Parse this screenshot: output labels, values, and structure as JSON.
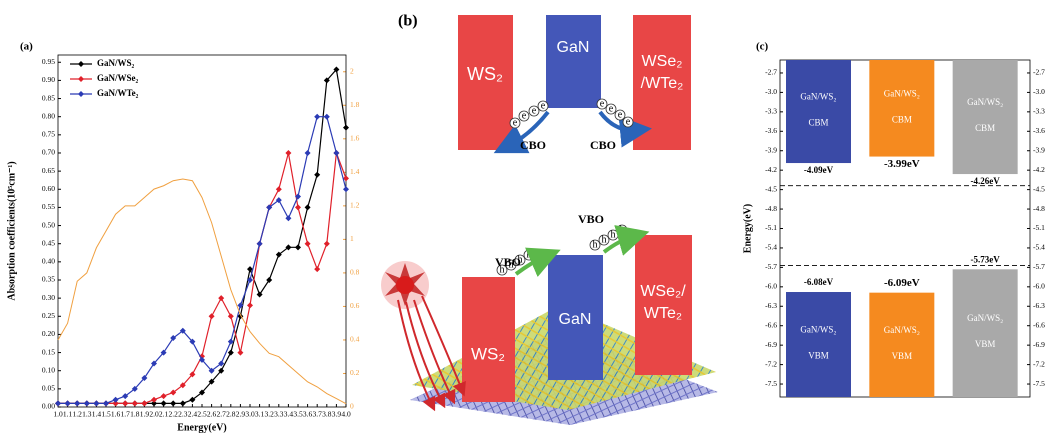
{
  "chart_data": [
    {
      "type": "line",
      "label": "(a)",
      "xlabel": "Energy(eV)",
      "ylabel": "Absorption coefficients(10⁵cm⁻¹)",
      "x": [
        1.0,
        1.1,
        1.2,
        1.3,
        1.4,
        1.5,
        1.6,
        1.7,
        1.8,
        1.9,
        2.0,
        2.1,
        2.2,
        2.3,
        2.4,
        2.5,
        2.6,
        2.7,
        2.8,
        2.9,
        3.0,
        3.1,
        3.2,
        3.3,
        3.4,
        3.5,
        3.6,
        3.7,
        3.8,
        3.9,
        4.0
      ],
      "xlim": [
        1.0,
        4.0
      ],
      "xticks": [
        {
          "value": 1,
          "label": "1.0"
        },
        1.1,
        1.2,
        1.3,
        1.4,
        1.5,
        1.6,
        1.7,
        1.8,
        1.9,
        {
          "value": 2,
          "label": "2.0"
        },
        2.1,
        2.2,
        2.3,
        2.4,
        2.5,
        2.6,
        2.7,
        2.8,
        2.9,
        {
          "value": 3,
          "label": "3.0"
        },
        3.1,
        3.2,
        3.3,
        3.4,
        3.5,
        3.6,
        3.7,
        3.8,
        3.9,
        {
          "value": 4,
          "label": "4.0"
        }
      ],
      "ylim": [
        0,
        0.97
      ],
      "yticks": [
        {
          "value": 0,
          "label": "0.00"
        },
        0.05,
        {
          "value": 0.1,
          "label": "0.10"
        },
        0.15,
        {
          "value": 0.2,
          "label": "0.20"
        },
        0.25,
        {
          "value": 0.3,
          "label": "0.30"
        },
        0.35,
        {
          "value": 0.4,
          "label": "0.40"
        },
        0.45,
        {
          "value": 0.5,
          "label": "0.50"
        },
        0.55,
        {
          "value": 0.6,
          "label": "0.60"
        },
        0.65,
        {
          "value": 0.7,
          "label": "0.70"
        },
        0.75,
        {
          "value": 0.8,
          "label": "0.80"
        },
        0.85,
        {
          "value": 0.9,
          "label": "0.90"
        },
        0.95
      ],
      "y2lim": [
        0,
        2.1
      ],
      "y2ticks": [
        0,
        0.2,
        0.4,
        0.6,
        0.8,
        1,
        1.2,
        1.4,
        1.6,
        1.8,
        2
      ],
      "y2color": "#f0a040",
      "legend": "upper left",
      "series": [
        {
          "name": "GaN/WS₂",
          "color": "#000000",
          "marker": "diamond",
          "values": [
            0.01,
            0.01,
            0.01,
            0.01,
            0.01,
            0.01,
            0.01,
            0.01,
            0.01,
            0.01,
            0.01,
            0.01,
            0.01,
            0.01,
            0.02,
            0.04,
            0.07,
            0.1,
            0.15,
            0.25,
            0.38,
            0.31,
            0.35,
            0.42,
            0.44,
            0.44,
            0.55,
            0.64,
            0.9,
            0.93,
            0.77
          ]
        },
        {
          "name": "GaN/WSe₂",
          "color": "#e0202a",
          "marker": "diamond",
          "values": [
            0.01,
            0.01,
            0.01,
            0.01,
            0.01,
            0.01,
            0.01,
            0.01,
            0.01,
            0.01,
            0.02,
            0.03,
            0.04,
            0.06,
            0.09,
            0.14,
            0.25,
            0.3,
            0.25,
            0.15,
            0.28,
            0.45,
            0.55,
            0.6,
            0.7,
            0.55,
            0.45,
            0.38,
            0.45,
            0.7,
            0.63
          ]
        },
        {
          "name": "GaN/WTe₂",
          "color": "#2b3bb5",
          "marker": "diamond",
          "values": [
            0.01,
            0.01,
            0.01,
            0.01,
            0.01,
            0.01,
            0.02,
            0.03,
            0.05,
            0.08,
            0.12,
            0.15,
            0.19,
            0.21,
            0.18,
            0.13,
            0.1,
            0.12,
            0.18,
            0.28,
            0.35,
            0.45,
            0.55,
            0.57,
            0.52,
            0.58,
            0.7,
            0.8,
            0.8,
            0.7,
            0.6
          ]
        },
        {
          "color": "#f0a040",
          "axis": "y2",
          "values": [
            0.4,
            0.5,
            0.75,
            0.8,
            0.95,
            1.05,
            1.15,
            1.2,
            1.2,
            1.25,
            1.3,
            1.32,
            1.35,
            1.36,
            1.35,
            1.25,
            1.1,
            0.9,
            0.7,
            0.55,
            0.45,
            0.38,
            0.32,
            0.3,
            0.25,
            0.2,
            0.15,
            0.12,
            0.08,
            0.05,
            0.02
          ]
        }
      ]
    },
    {
      "type": "floating_bar",
      "label": "(c)",
      "ylabel": "Energy(eV)",
      "ylim": [
        -7.7,
        -2.5
      ],
      "yticks": [
        -2.7,
        {
          "value": -3,
          "label": "-3.0"
        },
        -3.3,
        -3.6,
        -3.9,
        -4.2,
        -4.5,
        -4.8,
        -5.1,
        -5.4,
        -5.7,
        {
          "value": -6,
          "label": "-6.0"
        },
        -6.3,
        -6.6,
        -6.9,
        -7.2,
        -7.5
      ],
      "categories": [
        "GaN/WS₂",
        "GaN/WS₂",
        "GaN/WS₂"
      ],
      "colors": [
        "#3a4aa6",
        "#f58a1f",
        "#a9a9a9"
      ],
      "series": [
        {
          "name": "CBM",
          "values": [
            -4.09,
            -3.99,
            -4.26
          ],
          "value_labels": [
            "-4.09eV",
            "-3.99eV",
            "-4.26eV"
          ]
        },
        {
          "name": "VBM",
          "values": [
            -6.08,
            -6.09,
            -5.73
          ],
          "value_labels": [
            "-6.08eV",
            "-6.09eV",
            "-5.73eV"
          ]
        }
      ],
      "reference_lines": [
        -4.44,
        -5.67
      ]
    }
  ],
  "diagram": {
    "label": "(b)",
    "left": "WS₂",
    "middle": "GaN",
    "right_top": [
      "WSe₂",
      "/WTe₂"
    ],
    "right_bottom": [
      "WSe₂/",
      "WTe₂"
    ],
    "cbo": "CBO",
    "vbo": "VBO",
    "electron": "e",
    "hole": "h"
  }
}
